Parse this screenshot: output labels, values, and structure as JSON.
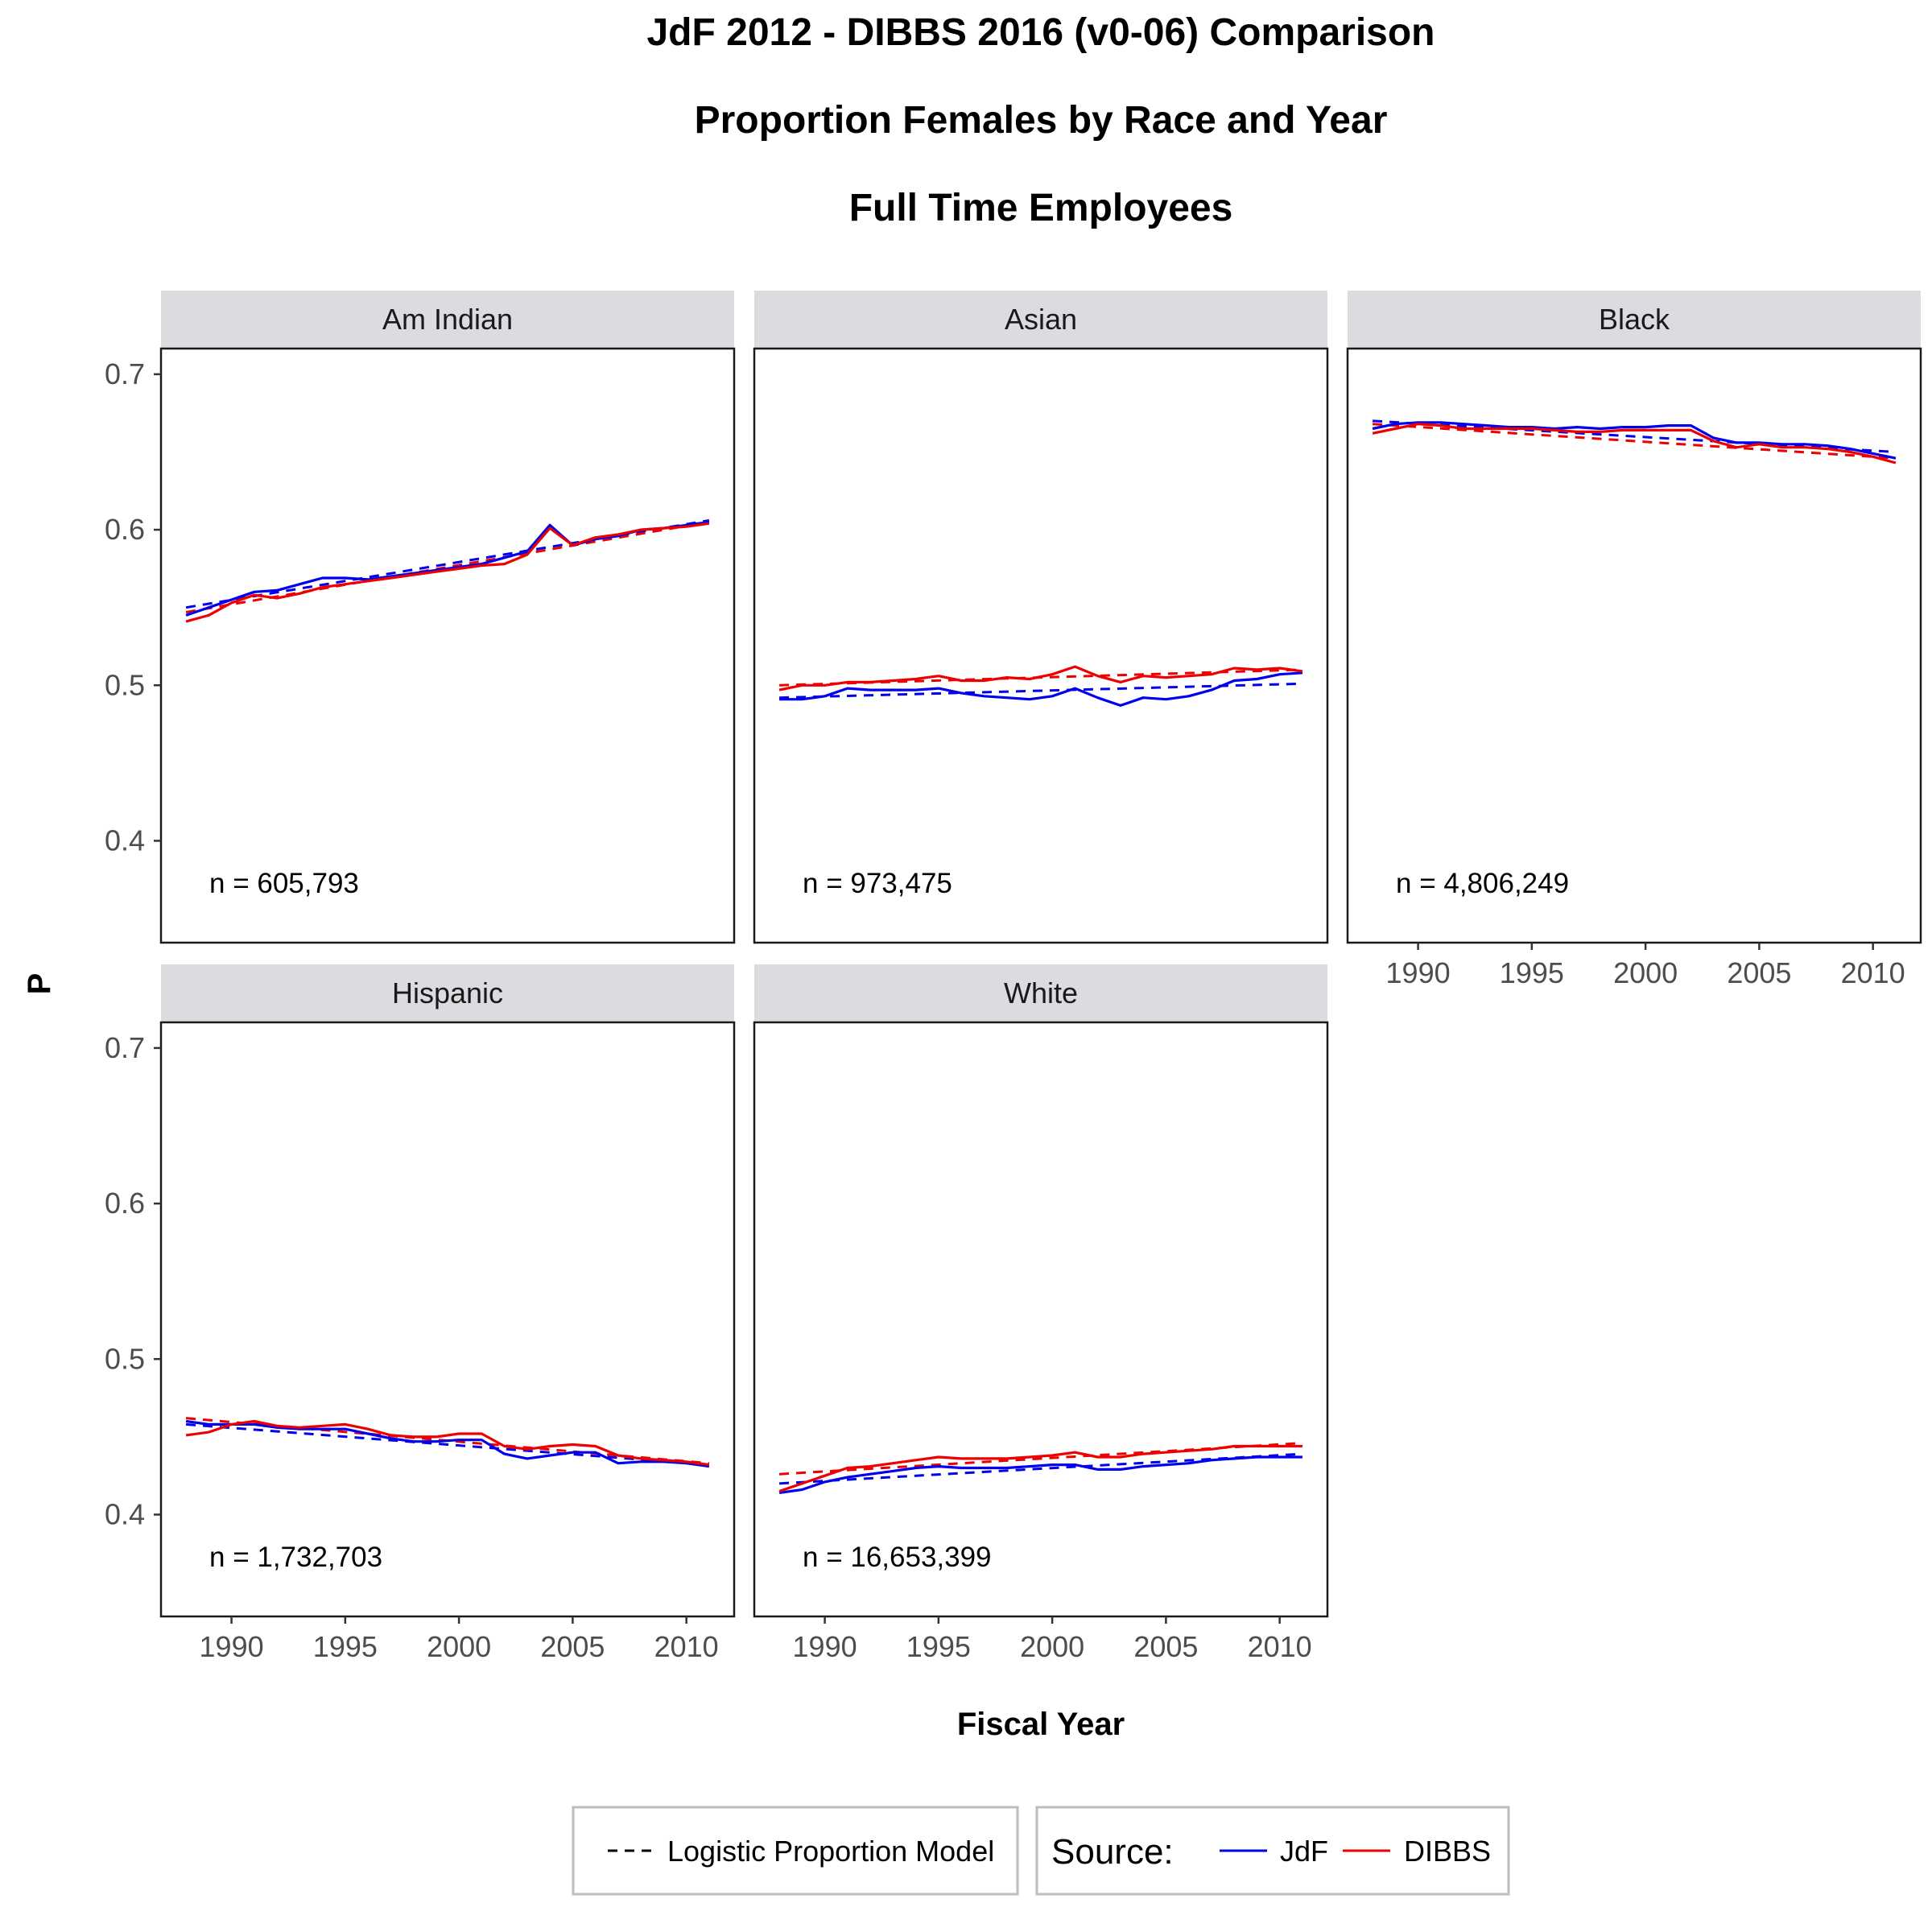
{
  "titles": [
    "JdF 2012 - DIBBS 2016 (v0-06) Comparison",
    "Proportion Females by Race and Year",
    "Full Time Employees"
  ],
  "xlabel": "Fiscal Year",
  "ylabel": "P",
  "legend": {
    "model_label": "Logistic Proportion Model",
    "source_title": "Source:",
    "jdf_label": "JdF",
    "dibbs_label": "DIBBS"
  },
  "colors": {
    "jdf": "#0000ee",
    "dibbs": "#ee0000",
    "model": "#000000",
    "strip": "#dcdbdf"
  },
  "chart_data": {
    "type": "line",
    "x": [
      1988,
      1989,
      1990,
      1991,
      1992,
      1993,
      1994,
      1995,
      1996,
      1997,
      1998,
      1999,
      2000,
      2001,
      2002,
      2003,
      2004,
      2005,
      2006,
      2007,
      2008,
      2009,
      2010,
      2011
    ],
    "xticks": [
      1990,
      1995,
      2000,
      2005,
      2010
    ],
    "yticks": [
      0.4,
      0.5,
      0.6,
      0.7
    ],
    "xlim": [
      1986.9,
      2012.1
    ],
    "ylim": [
      0.3345,
      0.7165
    ],
    "grid": false,
    "legend_position": "bottom",
    "panels": [
      {
        "name": "Am Indian",
        "n_label": "n = 605,793",
        "series": [
          {
            "name": "JdF",
            "values": [
              0.545,
              0.55,
              0.555,
              0.56,
              0.561,
              0.565,
              0.569,
              0.569,
              0.568,
              0.57,
              0.572,
              0.574,
              0.576,
              0.578,
              0.582,
              0.586,
              0.603,
              0.59,
              0.594,
              0.596,
              0.6,
              0.601,
              0.603,
              0.605
            ]
          },
          {
            "name": "DIBBS",
            "values": [
              0.541,
              0.545,
              0.553,
              0.558,
              0.556,
              0.559,
              0.563,
              0.565,
              0.567,
              0.569,
              0.571,
              0.573,
              0.575,
              0.577,
              0.578,
              0.584,
              0.601,
              0.59,
              0.595,
              0.597,
              0.6,
              0.601,
              0.602,
              0.604
            ]
          }
        ],
        "models": [
          {
            "source": "JdF",
            "start": 0.55,
            "end": 0.606
          },
          {
            "source": "DIBBS",
            "start": 0.547,
            "end": 0.605
          }
        ]
      },
      {
        "name": "Asian",
        "n_label": "n = 973,475",
        "series": [
          {
            "name": "JdF",
            "values": [
              0.491,
              0.491,
              0.493,
              0.498,
              0.497,
              0.497,
              0.497,
              0.498,
              0.495,
              0.493,
              0.492,
              0.491,
              0.493,
              0.498,
              0.492,
              0.487,
              0.492,
              0.491,
              0.493,
              0.497,
              0.503,
              0.504,
              0.507,
              0.508
            ]
          },
          {
            "name": "DIBBS",
            "values": [
              0.497,
              0.5,
              0.5,
              0.502,
              0.502,
              0.503,
              0.504,
              0.506,
              0.503,
              0.503,
              0.505,
              0.504,
              0.507,
              0.512,
              0.506,
              0.502,
              0.506,
              0.505,
              0.506,
              0.507,
              0.511,
              0.51,
              0.511,
              0.509
            ]
          }
        ],
        "models": [
          {
            "source": "JdF",
            "start": 0.492,
            "end": 0.501
          },
          {
            "source": "DIBBS",
            "start": 0.5,
            "end": 0.51
          }
        ]
      },
      {
        "name": "Black",
        "n_label": "n = 4,806,249",
        "series": [
          {
            "name": "JdF",
            "values": [
              0.665,
              0.668,
              0.669,
              0.669,
              0.668,
              0.667,
              0.666,
              0.666,
              0.665,
              0.666,
              0.665,
              0.666,
              0.666,
              0.667,
              0.667,
              0.659,
              0.656,
              0.656,
              0.655,
              0.655,
              0.654,
              0.652,
              0.649,
              0.646
            ]
          },
          {
            "name": "DIBBS",
            "values": [
              0.662,
              0.665,
              0.668,
              0.667,
              0.665,
              0.665,
              0.665,
              0.665,
              0.664,
              0.663,
              0.663,
              0.664,
              0.664,
              0.664,
              0.664,
              0.657,
              0.653,
              0.655,
              0.653,
              0.653,
              0.652,
              0.65,
              0.647,
              0.643
            ]
          }
        ],
        "models": [
          {
            "source": "JdF",
            "start": 0.67,
            "end": 0.65
          },
          {
            "source": "DIBBS",
            "start": 0.668,
            "end": 0.646
          }
        ]
      },
      {
        "name": "Hispanic",
        "n_label": "n = 1,732,703",
        "series": [
          {
            "name": "JdF",
            "values": [
              0.46,
              0.458,
              0.458,
              0.458,
              0.456,
              0.455,
              0.455,
              0.455,
              0.452,
              0.449,
              0.447,
              0.447,
              0.448,
              0.448,
              0.439,
              0.436,
              0.438,
              0.44,
              0.44,
              0.433,
              0.434,
              0.434,
              0.433,
              0.431
            ]
          },
          {
            "name": "DIBBS",
            "values": [
              0.451,
              0.453,
              0.458,
              0.46,
              0.457,
              0.456,
              0.457,
              0.458,
              0.455,
              0.451,
              0.45,
              0.45,
              0.452,
              0.452,
              0.444,
              0.442,
              0.444,
              0.445,
              0.444,
              0.438,
              0.436,
              0.435,
              0.434,
              0.432
            ]
          }
        ],
        "models": [
          {
            "source": "JdF",
            "start": 0.458,
            "end": 0.432
          },
          {
            "source": "DIBBS",
            "start": 0.462,
            "end": 0.433
          }
        ]
      },
      {
        "name": "White",
        "n_label": "n = 16,653,399",
        "series": [
          {
            "name": "JdF",
            "values": [
              0.414,
              0.416,
              0.421,
              0.424,
              0.426,
              0.428,
              0.43,
              0.431,
              0.43,
              0.43,
              0.43,
              0.431,
              0.432,
              0.432,
              0.429,
              0.429,
              0.431,
              0.432,
              0.433,
              0.435,
              0.436,
              0.437,
              0.437,
              0.437
            ]
          },
          {
            "name": "DIBBS",
            "values": [
              0.415,
              0.42,
              0.425,
              0.43,
              0.431,
              0.433,
              0.435,
              0.437,
              0.436,
              0.436,
              0.436,
              0.437,
              0.438,
              0.44,
              0.437,
              0.437,
              0.439,
              0.44,
              0.441,
              0.442,
              0.444,
              0.444,
              0.444,
              0.444
            ]
          }
        ],
        "models": [
          {
            "source": "JdF",
            "start": 0.42,
            "end": 0.439
          },
          {
            "source": "DIBBS",
            "start": 0.426,
            "end": 0.446
          }
        ]
      }
    ]
  }
}
